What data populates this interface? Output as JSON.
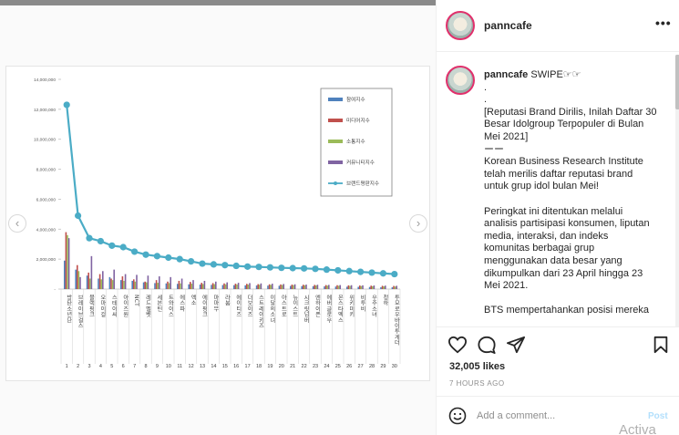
{
  "post": {
    "username": "panncafe",
    "more_label": "•••",
    "caption_lines": [
      "SWIPE☞☞",
      ".",
      ".",
      "[Reputasi Brand Dirilis, Inilah Daftar 30",
      "Besar Idolgroup Terpopuler di Bulan",
      "Mei 2021]",
      "ーー",
      "Korean Business Research Institute",
      "telah merilis daftar reputasi brand",
      "untuk grup idol bulan Mei!",
      "",
      "Peringkat ini ditentukan melalui",
      "analisis partisipasi konsumen, liputan",
      "media, interaksi, dan indeks",
      "komunitas berbagai grup",
      "menggunakan data besar yang",
      "dikumpulkan dari 23 April hingga 23",
      "Mei 2021.",
      "",
      "BTS mempertahankan posisi mereka"
    ],
    "likes": "32,005 likes",
    "time": "7 HOURS AGO",
    "comment_placeholder": "Add a comment...",
    "post_label": "Post",
    "watermark": "Activa"
  },
  "nav": {
    "prev": "‹",
    "next": "›"
  },
  "icons": [
    "heart-icon",
    "comment-icon",
    "share-icon",
    "bookmark-icon",
    "emoji-icon"
  ],
  "chart_data": {
    "type": "bar",
    "ylim": [
      0,
      14000000
    ],
    "yticks": [
      "-",
      "2,000,000",
      "4,000,000",
      "6,000,000",
      "8,000,000",
      "10,000,000",
      "12,000,000",
      "14,000,000"
    ],
    "ytick_values": [
      0,
      2000000,
      4000000,
      6000000,
      8000000,
      10000000,
      12000000,
      14000000
    ],
    "categories": [
      "1",
      "2",
      "3",
      "4",
      "5",
      "6",
      "7",
      "8",
      "9",
      "10",
      "11",
      "12",
      "13",
      "14",
      "15",
      "16",
      "17",
      "18",
      "19",
      "20",
      "21",
      "22",
      "23",
      "24",
      "25",
      "26",
      "27",
      "28",
      "29",
      "30"
    ],
    "group_names": [
      "방탄소년단",
      "브레이브걸스",
      "블랙핑크",
      "오마이걸",
      "스테이씨",
      "아이즈원",
      "NCT",
      "레드벨벳",
      "세븐틴",
      "트와이스",
      "에스파",
      "엑소",
      "에이핑크",
      "마마무",
      "라붐",
      "에이티즈",
      "더보이즈",
      "스트레이키즈",
      "이달의소녀",
      "아스트로",
      "뉴이스트",
      "시크릿넘버",
      "엔하이픈",
      "에버글로우",
      "몬스타엑스",
      "위키미키",
      "비투비",
      "우주소녀",
      "청하",
      "투모로우바이투게더"
    ],
    "legend_position": "top-right",
    "series": [
      {
        "name": "참여지수",
        "color": "#4f81bd",
        "values": [
          1900000,
          1300000,
          900000,
          700000,
          800000,
          600000,
          550000,
          450000,
          400000,
          380000,
          350000,
          320000,
          300000,
          280000,
          270000,
          260000,
          250000,
          240000,
          230000,
          220000,
          210000,
          200000,
          190000,
          180000,
          170000,
          160000,
          150000,
          140000,
          130000,
          120000
        ]
      },
      {
        "name": "미디어지수",
        "color": "#c0504d",
        "values": [
          3800000,
          1600000,
          1100000,
          1000000,
          700000,
          850000,
          650000,
          500000,
          600000,
          500000,
          550000,
          480000,
          420000,
          400000,
          380000,
          360000,
          350000,
          330000,
          320000,
          310000,
          300000,
          290000,
          280000,
          270000,
          260000,
          250000,
          240000,
          230000,
          220000,
          210000
        ]
      },
      {
        "name": "소통지수",
        "color": "#9bbb59",
        "values": [
          3600000,
          1200000,
          700000,
          650000,
          600000,
          550000,
          500000,
          450000,
          420000,
          400000,
          380000,
          360000,
          340000,
          330000,
          320000,
          310000,
          300000,
          290000,
          280000,
          270000,
          260000,
          250000,
          240000,
          230000,
          220000,
          210000,
          200000,
          190000,
          180000,
          170000
        ]
      },
      {
        "name": "커뮤니티지수",
        "color": "#8064a2",
        "values": [
          3400000,
          800000,
          2200000,
          1200000,
          1300000,
          1000000,
          950000,
          900000,
          850000,
          800000,
          700000,
          600000,
          550000,
          500000,
          450000,
          420000,
          400000,
          380000,
          360000,
          340000,
          320000,
          300000,
          290000,
          280000,
          270000,
          260000,
          250000,
          240000,
          230000,
          220000
        ]
      },
      {
        "name": "브랜드평판지수",
        "color": "#4bacc6",
        "type": "line",
        "values": [
          12300000,
          4900000,
          3400000,
          3200000,
          2900000,
          2800000,
          2500000,
          2300000,
          2200000,
          2100000,
          2000000,
          1850000,
          1700000,
          1650000,
          1600000,
          1550000,
          1500000,
          1480000,
          1450000,
          1420000,
          1400000,
          1380000,
          1350000,
          1300000,
          1250000,
          1200000,
          1150000,
          1100000,
          1050000,
          1000000
        ]
      }
    ]
  }
}
